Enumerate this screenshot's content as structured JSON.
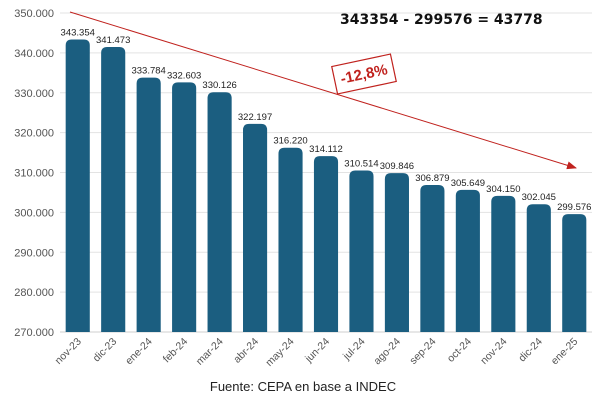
{
  "chart_data": {
    "type": "bar",
    "categories": [
      "nov-23",
      "dic-23",
      "ene-24",
      "feb-24",
      "mar-24",
      "abr-24",
      "may-24",
      "jun-24",
      "jul-24",
      "ago-24",
      "sep-24",
      "oct-24",
      "nov-24",
      "dic-24",
      "ene-25"
    ],
    "values": [
      343354,
      341473,
      333784,
      332603,
      330126,
      322197,
      316220,
      314112,
      310514,
      309846,
      306879,
      305649,
      304150,
      302045,
      299576
    ],
    "data_labels": [
      "343.354",
      "341.473",
      "333.784",
      "332.603",
      "330.126",
      "322.197",
      "316.220",
      "314.112",
      "310.514",
      "309.846",
      "306.879",
      "305.649",
      "304.150",
      "302.045",
      "299.576"
    ],
    "yticks": [
      "270.000",
      "280.000",
      "290.000",
      "300.000",
      "310.000",
      "320.000",
      "330.000",
      "340.000",
      "350.000"
    ],
    "ytick_values": [
      270000,
      280000,
      290000,
      300000,
      310000,
      320000,
      330000,
      340000,
      350000
    ],
    "ylim": [
      270000,
      350000
    ],
    "grid": true,
    "annotations": {
      "formula": "343354 - 299576 = 43778",
      "change": "-12,8%"
    }
  },
  "colors": {
    "bar": "#1b5e80",
    "arrow": "#c0221e",
    "grid": "#e3e3e3"
  },
  "source": "Fuente: CEPA en base a INDEC"
}
